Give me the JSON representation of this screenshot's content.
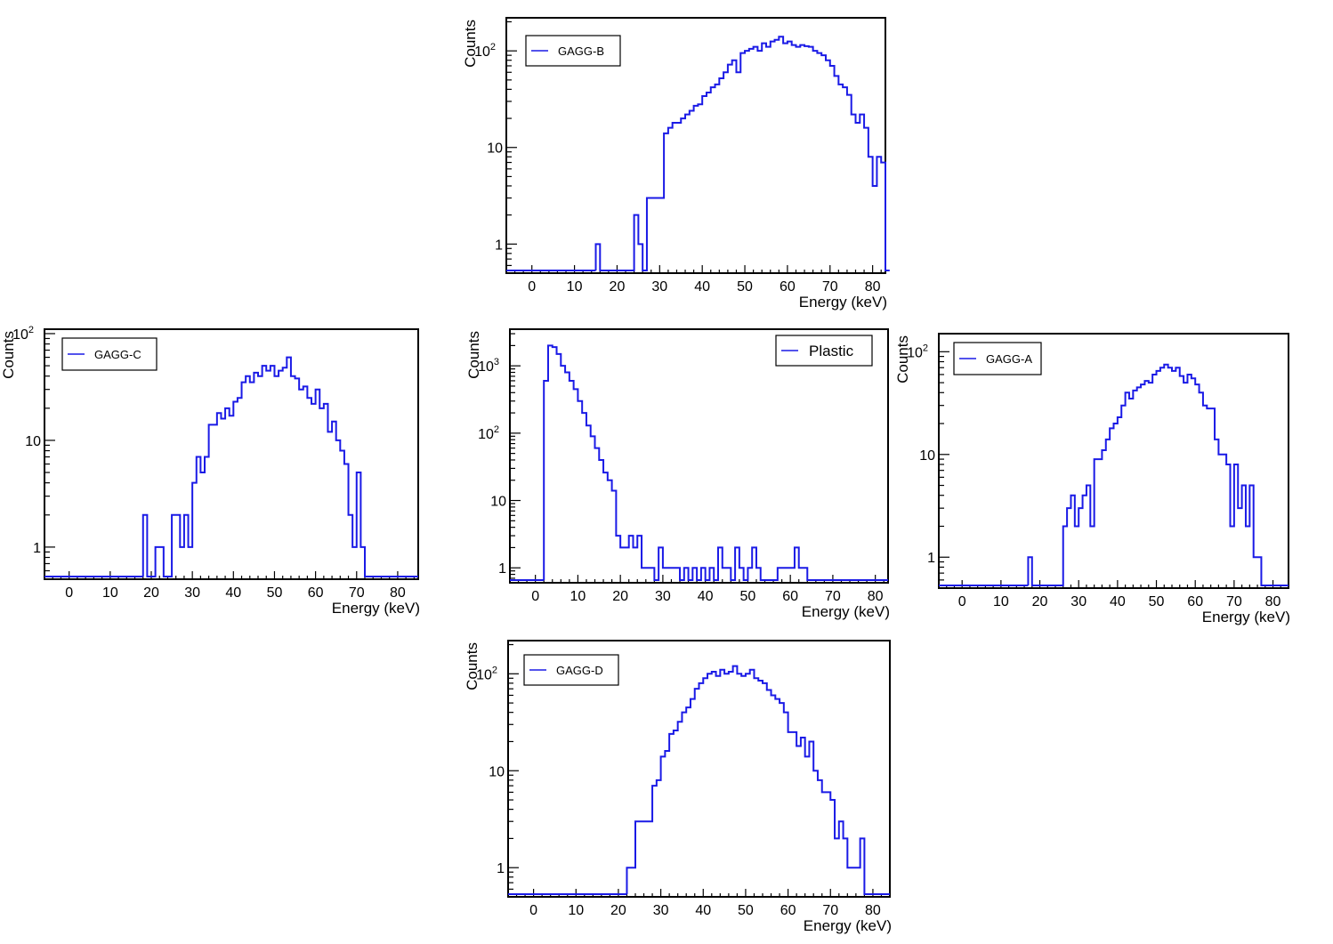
{
  "chart_data": [
    {
      "type": "histogram",
      "legend": "GAGG-B",
      "xlabel": "Energy (keV)",
      "ylabel": "Counts",
      "ylog": true,
      "xlim": [
        -6,
        83
      ],
      "ylim": [
        0.5,
        220
      ],
      "xticks": [
        0,
        10,
        20,
        30,
        40,
        50,
        60,
        70,
        80
      ],
      "yticks": [
        {
          "v": 1,
          "label": "1"
        },
        {
          "v": 10,
          "label": "10"
        },
        {
          "v": 100,
          "label": "10",
          "exp": "2"
        }
      ],
      "bin_width": 1,
      "bins_start": 15,
      "counts": [
        1,
        0,
        0,
        0,
        0,
        0,
        0,
        0,
        0,
        2,
        1,
        0,
        3,
        3,
        3,
        3,
        14,
        16,
        18,
        18,
        20,
        22,
        24,
        27,
        28,
        34,
        37,
        42,
        45,
        52,
        60,
        72,
        80,
        60,
        95,
        100,
        105,
        110,
        100,
        120,
        110,
        125,
        130,
        140,
        120,
        125,
        115,
        110,
        115,
        112,
        110,
        100,
        95,
        90,
        80,
        70,
        55,
        45,
        42,
        35,
        22,
        18,
        22,
        16,
        8,
        4,
        8,
        7,
        0
      ]
    },
    {
      "type": "histogram",
      "legend": "GAGG-C",
      "xlabel": "Energy (keV)",
      "ylabel": "Counts",
      "ylog": true,
      "xlim": [
        -6,
        85
      ],
      "ylim": [
        0.5,
        110
      ],
      "xticks": [
        0,
        10,
        20,
        30,
        40,
        50,
        60,
        70,
        80
      ],
      "yticks": [
        {
          "v": 1,
          "label": "1"
        },
        {
          "v": 10,
          "label": "10"
        },
        {
          "v": 100,
          "label": "10",
          "exp": "2"
        }
      ],
      "bin_width": 1,
      "bins_start": 18,
      "counts": [
        2,
        0,
        0,
        1,
        1,
        0,
        0,
        2,
        2,
        1,
        2,
        1,
        4,
        7,
        5,
        7,
        14,
        14,
        18,
        16,
        20,
        17,
        23,
        25,
        35,
        40,
        35,
        43,
        40,
        50,
        45,
        50,
        40,
        45,
        48,
        60,
        40,
        38,
        30,
        32,
        25,
        22,
        30,
        20,
        22,
        12,
        15,
        10,
        8,
        6,
        2,
        1,
        5,
        1,
        0
      ]
    },
    {
      "type": "histogram",
      "legend": "Plastic",
      "xlabel": "Energy (keV)",
      "ylabel": "Counts",
      "ylog": true,
      "xlim": [
        -6,
        83
      ],
      "ylim": [
        0.6,
        3500
      ],
      "xticks": [
        0,
        10,
        20,
        30,
        40,
        50,
        60,
        70,
        80
      ],
      "yticks": [
        {
          "v": 1,
          "label": "1"
        },
        {
          "v": 10,
          "label": "10"
        },
        {
          "v": 100,
          "label": "10",
          "exp": "2"
        },
        {
          "v": 1000,
          "label": "10",
          "exp": "3"
        }
      ],
      "bin_width": 1,
      "bins_start": 2,
      "counts": [
        600,
        2000,
        1900,
        1500,
        1000,
        800,
        600,
        450,
        300,
        200,
        130,
        90,
        60,
        40,
        26,
        20,
        14,
        3,
        2,
        2,
        3,
        2,
        3,
        1,
        1,
        1,
        0,
        2,
        1,
        1,
        1,
        1,
        0,
        1,
        0,
        1,
        0,
        1,
        0,
        1,
        0,
        2,
        1,
        1,
        0,
        2,
        1,
        0,
        1,
        2,
        1,
        0,
        0,
        0,
        0,
        1,
        1,
        1,
        1,
        2,
        1,
        1,
        0,
        0,
        0,
        0,
        0
      ]
    },
    {
      "type": "histogram",
      "legend": "GAGG-A",
      "xlabel": "Energy (keV)",
      "ylabel": "Counts",
      "ylog": true,
      "xlim": [
        -6,
        84
      ],
      "ylim": [
        0.5,
        150
      ],
      "xticks": [
        0,
        10,
        20,
        30,
        40,
        50,
        60,
        70,
        80
      ],
      "yticks": [
        {
          "v": 1,
          "label": "1"
        },
        {
          "v": 10,
          "label": "10"
        },
        {
          "v": 100,
          "label": "10",
          "exp": "2"
        }
      ],
      "bin_width": 1,
      "bins_start": 17,
      "counts": [
        1,
        0,
        0,
        0,
        0,
        0,
        0,
        0,
        0,
        2,
        3,
        4,
        2,
        3,
        4,
        5,
        2,
        9,
        9,
        11,
        14,
        18,
        20,
        23,
        30,
        40,
        35,
        42,
        45,
        48,
        52,
        50,
        60,
        65,
        70,
        75,
        70,
        65,
        70,
        58,
        50,
        60,
        55,
        48,
        40,
        30,
        28,
        28,
        14,
        10,
        10,
        8,
        2,
        8,
        3,
        5,
        2,
        5,
        1,
        1,
        0
      ]
    },
    {
      "type": "histogram",
      "legend": "GAGG-D",
      "xlabel": "Energy (keV)",
      "ylabel": "Counts",
      "ylog": true,
      "xlim": [
        -6,
        84
      ],
      "ylim": [
        0.5,
        220
      ],
      "xticks": [
        0,
        10,
        20,
        30,
        40,
        50,
        60,
        70,
        80
      ],
      "yticks": [
        {
          "v": 1,
          "label": "1"
        },
        {
          "v": 10,
          "label": "10"
        },
        {
          "v": 100,
          "label": "10",
          "exp": "2"
        }
      ],
      "bin_width": 1,
      "bins_start": 22,
      "counts": [
        1,
        1,
        3,
        3,
        3,
        3,
        7,
        8,
        14,
        16,
        24,
        26,
        32,
        40,
        45,
        55,
        70,
        80,
        90,
        100,
        105,
        95,
        110,
        100,
        105,
        120,
        100,
        95,
        100,
        110,
        90,
        85,
        80,
        68,
        60,
        55,
        50,
        40,
        25,
        25,
        18,
        22,
        14,
        20,
        10,
        8,
        6,
        6,
        5,
        2,
        3,
        2,
        1,
        1,
        1,
        2,
        0
      ]
    }
  ]
}
